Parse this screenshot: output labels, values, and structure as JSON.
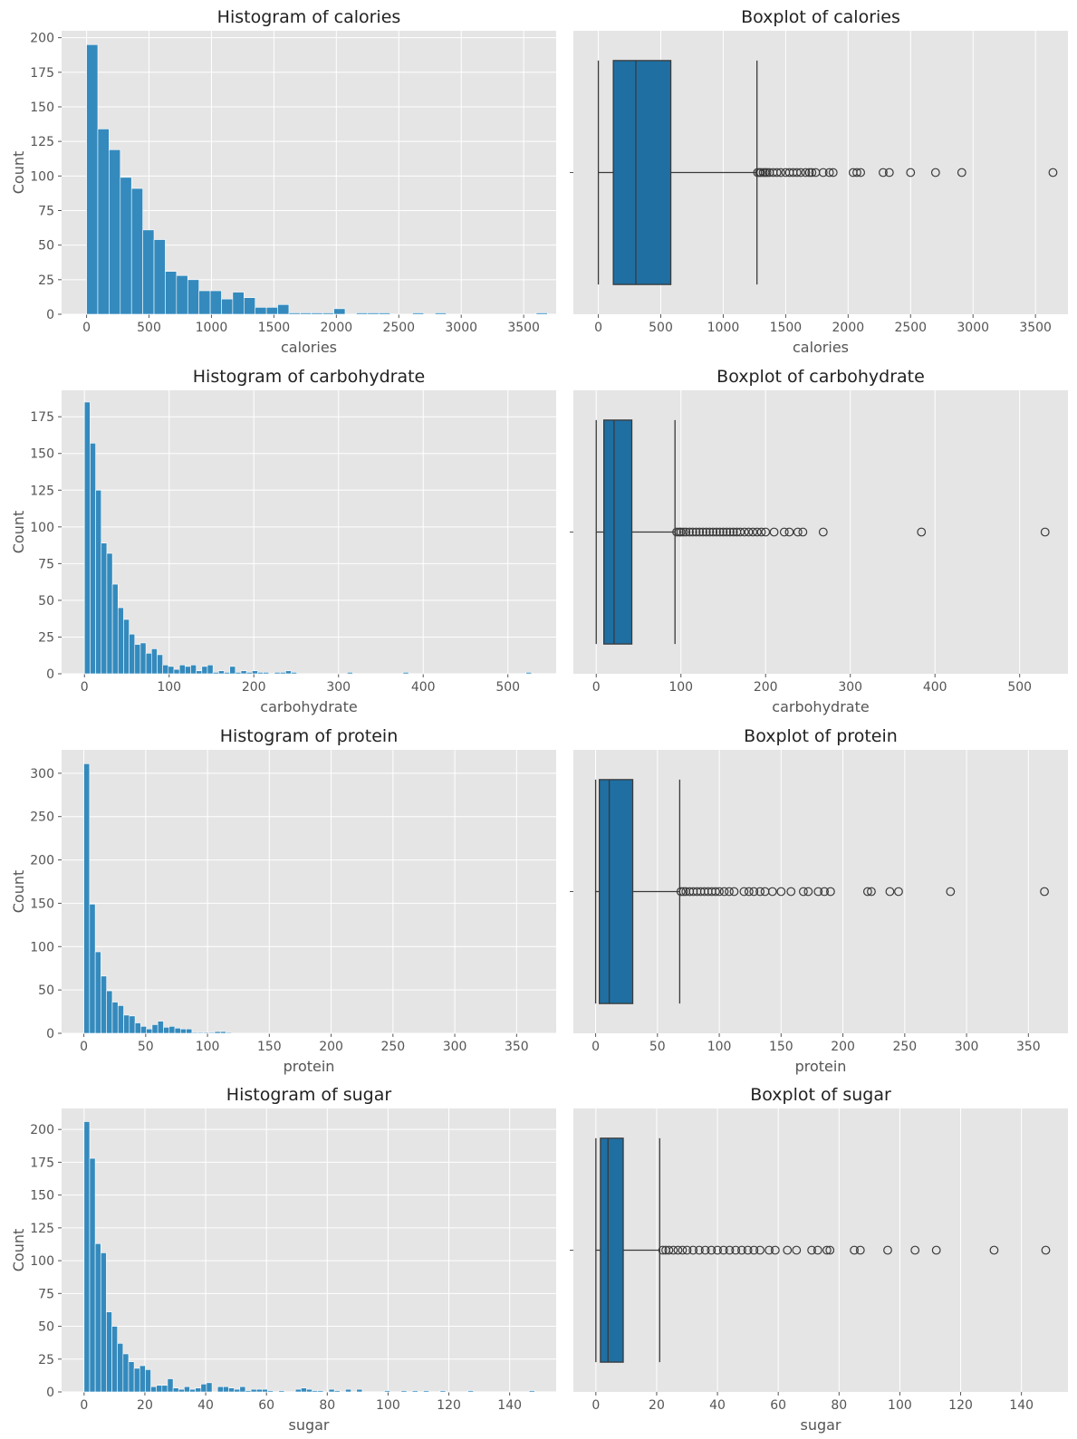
{
  "style": {
    "panel_bg": "#e5e5e5",
    "grid": "#ffffff",
    "hist_fill": "#348abd",
    "box_fill": "#1f6fa3",
    "box_edge": "#3a3a3a"
  },
  "chart_data": [
    {
      "type": "bar",
      "variant": "histogram",
      "title": "Histogram of calories",
      "xlabel": "calories",
      "ylabel": "Count",
      "xlim": [
        -200,
        3760
      ],
      "ylim": [
        0,
        205
      ],
      "xticks": [
        0,
        500,
        1000,
        1500,
        2000,
        2500,
        3000,
        3500
      ],
      "yticks": [
        0,
        25,
        50,
        75,
        100,
        125,
        150,
        175,
        200
      ],
      "bin_start": 0,
      "bin_width": 90,
      "counts": [
        195,
        134,
        119,
        99,
        91,
        61,
        54,
        31,
        28,
        25,
        17,
        17,
        11,
        16,
        12,
        5,
        5,
        7,
        1,
        1,
        1,
        1,
        4,
        0,
        1,
        1,
        1,
        0,
        0,
        1,
        0,
        1,
        0,
        0,
        0,
        0,
        0,
        0,
        0,
        0,
        1
      ]
    },
    {
      "type": "box",
      "title": "Boxplot of calories",
      "xlabel": "calories",
      "xlim": [
        -200,
        3760
      ],
      "xticks": [
        0,
        500,
        1000,
        1500,
        2000,
        2500,
        3000,
        3500
      ],
      "whisker_low": 0,
      "q1": 120,
      "median": 300,
      "q3": 580,
      "whisker_high": 1270,
      "outliers": [
        1275,
        1290,
        1300,
        1320,
        1335,
        1350,
        1370,
        1400,
        1430,
        1460,
        1500,
        1530,
        1560,
        1590,
        1620,
        1660,
        1690,
        1710,
        1740,
        1800,
        1850,
        1880,
        2040,
        2070,
        2100,
        2280,
        2330,
        2500,
        2700,
        2910,
        3640
      ]
    },
    {
      "type": "bar",
      "variant": "histogram",
      "title": "Histogram of carbohydrate",
      "xlabel": "carbohydrate",
      "ylabel": "Count",
      "xlim": [
        -27,
        557
      ],
      "ylim": [
        0,
        193
      ],
      "xticks": [
        0,
        100,
        200,
        300,
        400,
        500
      ],
      "yticks": [
        0,
        25,
        50,
        75,
        100,
        125,
        150,
        175
      ],
      "bin_start": 0,
      "bin_width": 6.6,
      "counts": [
        185,
        157,
        125,
        89,
        82,
        61,
        45,
        37,
        27,
        20,
        21,
        14,
        17,
        13,
        6,
        5,
        3,
        6,
        5,
        6,
        2,
        5,
        6,
        1,
        2,
        1,
        5,
        1,
        2,
        1,
        2,
        1,
        1,
        0,
        1,
        1,
        2,
        1,
        0,
        0,
        0,
        0,
        0,
        0,
        0,
        0,
        0,
        1,
        0,
        0,
        0,
        0,
        0,
        0,
        0,
        0,
        0,
        1,
        0,
        0,
        0,
        0,
        0,
        0,
        0,
        0,
        0,
        0,
        0,
        0,
        0,
        0,
        0,
        0,
        0,
        0,
        0,
        0,
        0,
        1
      ]
    },
    {
      "type": "box",
      "title": "Boxplot of carbohydrate",
      "xlabel": "carbohydrate",
      "xlim": [
        -27,
        557
      ],
      "xticks": [
        0,
        100,
        200,
        300,
        400,
        500
      ],
      "whisker_low": 0,
      "q1": 9,
      "median": 21,
      "q3": 42,
      "whisker_high": 93,
      "outliers": [
        95,
        98,
        100,
        103,
        106,
        110,
        114,
        118,
        122,
        126,
        130,
        134,
        138,
        142,
        146,
        150,
        154,
        158,
        162,
        166,
        170,
        175,
        180,
        185,
        190,
        195,
        200,
        210,
        222,
        228,
        238,
        244,
        268,
        384,
        530
      ]
    },
    {
      "type": "bar",
      "variant": "histogram",
      "title": "Histogram of protein",
      "xlabel": "protein",
      "ylabel": "Count",
      "xlim": [
        -18,
        382
      ],
      "ylim": [
        0,
        327
      ],
      "xticks": [
        0,
        50,
        100,
        150,
        200,
        250,
        300,
        350
      ],
      "yticks": [
        0,
        50,
        100,
        150,
        200,
        250,
        300
      ],
      "bin_start": 0,
      "bin_width": 4.6,
      "counts": [
        311,
        149,
        94,
        66,
        49,
        36,
        32,
        21,
        20,
        12,
        8,
        5,
        10,
        14,
        7,
        8,
        6,
        5,
        5,
        1,
        1,
        1,
        1,
        2,
        2,
        1,
        0,
        0,
        0,
        0,
        0,
        0,
        0,
        0,
        0,
        0,
        0,
        0,
        0,
        0,
        0,
        0,
        0,
        0,
        0,
        0,
        0,
        0,
        0,
        0,
        0,
        0,
        0,
        0,
        0,
        0,
        0,
        0,
        0,
        0,
        0,
        0,
        0,
        0,
        0,
        0,
        0,
        0,
        0,
        0,
        0,
        0,
        0,
        0,
        0,
        0,
        0,
        0,
        0,
        0
      ]
    },
    {
      "type": "box",
      "title": "Boxplot of protein",
      "xlabel": "protein",
      "xlim": [
        -18,
        382
      ],
      "xticks": [
        0,
        50,
        100,
        150,
        200,
        250,
        300,
        350
      ],
      "whisker_low": 0,
      "q1": 3,
      "median": 11,
      "q3": 30,
      "whisker_high": 68,
      "outliers": [
        69,
        71,
        73,
        76,
        79,
        82,
        85,
        88,
        91,
        94,
        97,
        100,
        104,
        108,
        112,
        120,
        124,
        128,
        133,
        137,
        143,
        150,
        158,
        168,
        172,
        180,
        185,
        190,
        220,
        223,
        238,
        245,
        287,
        363
      ]
    },
    {
      "type": "bar",
      "variant": "histogram",
      "title": "Histogram of sugar",
      "xlabel": "sugar",
      "ylabel": "Count",
      "xlim": [
        -7.4,
        155.3
      ],
      "ylim": [
        0,
        216
      ],
      "xticks": [
        0,
        20,
        40,
        60,
        80,
        100,
        120,
        140
      ],
      "yticks": [
        0,
        25,
        50,
        75,
        100,
        125,
        150,
        175,
        200
      ],
      "bin_start": 0,
      "bin_width": 1.83,
      "counts": [
        206,
        178,
        113,
        106,
        61,
        50,
        37,
        29,
        23,
        18,
        20,
        17,
        4,
        5,
        5,
        10,
        3,
        2,
        4,
        2,
        3,
        6,
        7,
        0,
        4,
        4,
        3,
        2,
        4,
        1,
        2,
        2,
        2,
        1,
        0,
        1,
        0,
        0,
        2,
        3,
        2,
        1,
        1,
        0,
        2,
        1,
        0,
        2,
        0,
        2,
        0,
        0,
        0,
        0,
        1,
        0,
        0,
        1,
        0,
        1,
        0,
        1,
        0,
        0,
        1,
        0,
        0,
        0,
        0,
        1,
        0,
        0,
        0,
        0,
        0,
        0,
        0,
        0,
        0,
        0,
        1
      ]
    },
    {
      "type": "box",
      "title": "Boxplot of sugar",
      "xlabel": "sugar",
      "xlim": [
        -7.4,
        155.3
      ],
      "xticks": [
        0,
        20,
        40,
        60,
        80,
        100,
        120,
        140
      ],
      "whisker_low": 0,
      "q1": 1.5,
      "median": 4,
      "q3": 9,
      "whisker_high": 21,
      "outliers": [
        22,
        23,
        24,
        25.5,
        27,
        28.5,
        30,
        32,
        34,
        36,
        38,
        40,
        42,
        44,
        46,
        48,
        50,
        52,
        54,
        57,
        59,
        63,
        66,
        71,
        73,
        76,
        77,
        85,
        87,
        96,
        105,
        112,
        131,
        148
      ]
    }
  ]
}
